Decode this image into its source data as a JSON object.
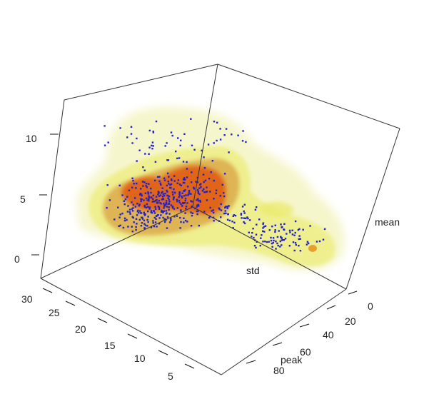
{
  "chart_data": {
    "type": "scatter",
    "title": "",
    "axes": {
      "std": {
        "label": "std",
        "ticks": []
      },
      "mean": {
        "label": "mean",
        "ticks": [
          "0",
          "5",
          "10"
        ]
      },
      "peak": {
        "label": "peak",
        "ticks": [
          "0",
          "20",
          "40",
          "60",
          "80"
        ]
      },
      "depth": {
        "label": "",
        "ticks": [
          "30",
          "25",
          "20",
          "15",
          "10",
          "5"
        ]
      }
    },
    "density_contours": {
      "levels": [
        "outer",
        "mid",
        "inner",
        "core"
      ],
      "colors": [
        "#f4f4c4",
        "#ecec7a",
        "#d8a040",
        "#e05810"
      ]
    },
    "points_color": "#2222cc"
  }
}
